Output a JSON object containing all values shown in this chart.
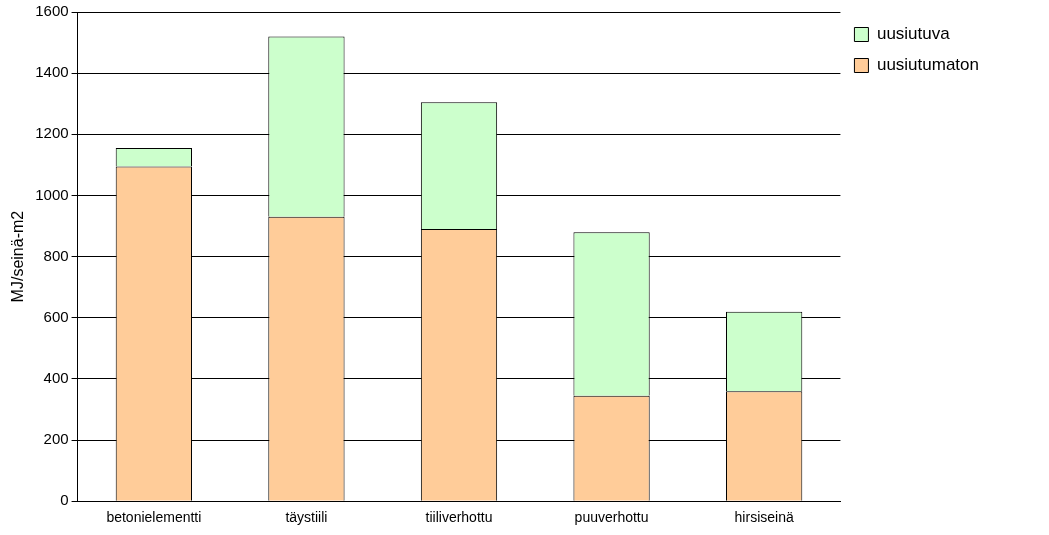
{
  "chart_data": {
    "type": "bar",
    "ylabel": "MJ/seinä-m2",
    "categories": [
      "betonielementti",
      "täystiili",
      "tiiliverhottu",
      "puuverhottu",
      "hirsiseinä"
    ],
    "series": [
      {
        "name": "uusiutumaton",
        "color": "#ffcc99",
        "values": [
          1095,
          930,
          890,
          345,
          360
        ]
      },
      {
        "name": "uusiutuva",
        "color": "#ccffcc",
        "values": [
          60,
          590,
          415,
          535,
          260
        ]
      }
    ],
    "stacked": true,
    "ylim": [
      0,
      1600
    ],
    "yticks": [
      0,
      200,
      400,
      600,
      800,
      1000,
      1200,
      1400,
      1600
    ],
    "grid": "y",
    "legend": "top right"
  }
}
